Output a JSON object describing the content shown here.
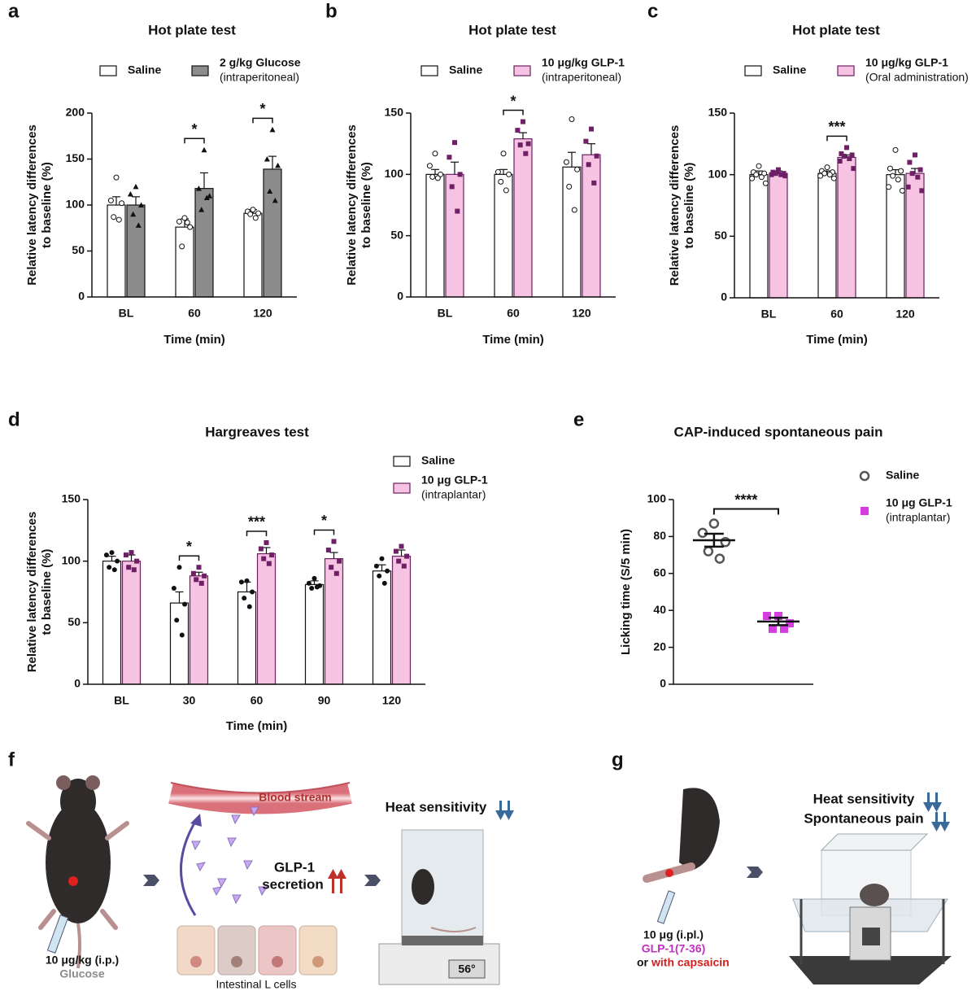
{
  "chart_data": [
    {
      "type": "bar",
      "panel": "a",
      "title": "Hot plate test",
      "xlabel": "Time (min)",
      "ylabel": [
        "Relative latency differences",
        "to baseline (%)"
      ],
      "categories": [
        "BL",
        "60",
        "120"
      ],
      "ylim": [
        0,
        200
      ],
      "yticks": [
        0,
        50,
        100,
        150,
        200
      ],
      "significance": [
        null,
        "*",
        "*"
      ],
      "series": [
        {
          "name": "Saline",
          "color": "#ffffff",
          "edge": "#111111",
          "marker": "open-circle",
          "marker_color": "#111111",
          "values": [
            100,
            76,
            91
          ],
          "errors": [
            9,
            9,
            4
          ],
          "points": [
            [
              130,
              105,
              102,
              87,
              84
            ],
            [
              86,
              82,
              76,
              55,
              81
            ],
            [
              95,
              93,
              91,
              90,
              86
            ]
          ]
        },
        {
          "name": "2 g/kg Glucose",
          "note": "(intraperitoneal)",
          "color": "#8c8c8c",
          "edge": "#111111",
          "marker": "triangle",
          "marker_color": "#111111",
          "values": [
            100,
            118,
            139
          ],
          "errors": [
            9,
            17,
            14
          ],
          "points": [
            [
              120,
              112,
              100,
              90,
              78
            ],
            [
              160,
              118,
              110,
              95,
              108
            ],
            [
              182,
              150,
              143,
              115,
              105
            ]
          ]
        }
      ]
    },
    {
      "type": "bar",
      "panel": "b",
      "title": "Hot plate test",
      "xlabel": "Time (min)",
      "ylabel": [
        "Relative latency differences",
        "to baseline (%)"
      ],
      "categories": [
        "BL",
        "60",
        "120"
      ],
      "ylim": [
        0,
        150
      ],
      "yticks": [
        0,
        50,
        100,
        150
      ],
      "significance": [
        null,
        "*",
        null
      ],
      "series": [
        {
          "name": "Saline",
          "color": "#ffffff",
          "edge": "#111111",
          "marker": "open-circle",
          "marker_color": "#111111",
          "values": [
            100,
            100,
            106
          ],
          "errors": [
            4,
            4,
            12
          ],
          "points": [
            [
              117,
              107,
              100,
              98,
              97
            ],
            [
              117,
              102,
              100,
              94,
              87
            ],
            [
              145,
              110,
              104,
              90,
              71
            ]
          ]
        },
        {
          "name": "10 μg/kg GLP-1",
          "note": "(intraperitoneal)",
          "color": "#f6c3e3",
          "edge": "#6b2060",
          "marker": "square",
          "marker_color": "#6e1f66",
          "values": [
            100,
            129,
            116
          ],
          "errors": [
            10,
            5,
            9
          ],
          "points": [
            [
              126,
              114,
              100,
              90,
              70
            ],
            [
              143,
              136,
              125,
              124,
              117
            ],
            [
              137,
              127,
              115,
              108,
              93
            ]
          ]
        }
      ]
    },
    {
      "type": "bar",
      "panel": "c",
      "title": "Hot plate test",
      "xlabel": "Time (min)",
      "ylabel": [
        "Relative latency differences",
        "to baseline (%)"
      ],
      "categories": [
        "BL",
        "60",
        "120"
      ],
      "ylim": [
        0,
        150
      ],
      "yticks": [
        0,
        50,
        100,
        150
      ],
      "significance": [
        null,
        "***",
        null
      ],
      "series": [
        {
          "name": "Saline",
          "color": "#ffffff",
          "edge": "#111111",
          "marker": "open-circle",
          "marker_color": "#111111",
          "values": [
            100,
            101,
            100
          ],
          "errors": [
            3,
            2,
            4
          ],
          "points": [
            [
              107,
              102,
              101,
              100,
              98,
              97,
              93
            ],
            [
              106,
              103,
              102,
              101,
              100,
              99,
              97
            ],
            [
              120,
              105,
              103,
              99,
              96,
              90,
              87
            ]
          ]
        },
        {
          "name": "10 μg/kg GLP-1",
          "note": "(Oral administration)",
          "color": "#f6c3e3",
          "edge": "#6b2060",
          "marker": "square",
          "marker_color": "#6e1f66",
          "values": [
            101,
            114,
            101
          ],
          "errors": [
            2,
            2,
            4
          ],
          "points": [
            [
              104,
              102,
              101,
              101,
              100,
              100,
              99
            ],
            [
              122,
              117,
              116,
              115,
              113,
              111,
              105
            ],
            [
              116,
              110,
              104,
              101,
              98,
              90,
              87
            ]
          ]
        }
      ]
    },
    {
      "type": "bar",
      "panel": "d",
      "title": "Hargreaves test",
      "xlabel": "Time (min)",
      "ylabel": [
        "Relative latency differences",
        "to baseline (%)"
      ],
      "categories": [
        "BL",
        "30",
        "60",
        "90",
        "120"
      ],
      "ylim": [
        0,
        150
      ],
      "yticks": [
        0,
        50,
        100,
        150
      ],
      "significance": [
        null,
        "*",
        "***",
        "*",
        null
      ],
      "series": [
        {
          "name": "Saline",
          "color": "#ffffff",
          "edge": "#111111",
          "marker": "circle",
          "marker_color": "#111111",
          "values": [
            100,
            66,
            75,
            81,
            92
          ],
          "errors": [
            4,
            9,
            8,
            3,
            5
          ],
          "points": [
            [
              107,
              105,
              100,
              95,
              93
            ],
            [
              95,
              78,
              65,
              52,
              40
            ],
            [
              84,
              83,
              75,
              70,
              63
            ],
            [
              86,
              82,
              80,
              78,
              79
            ],
            [
              102,
              96,
              92,
              88,
              82
            ]
          ]
        },
        {
          "name": "10 μg GLP-1",
          "note": "(intraplantar)",
          "color": "#f6c3e3",
          "edge": "#6b2060",
          "marker": "square",
          "marker_color": "#6e1f66",
          "values": [
            100,
            88,
            106,
            102,
            104
          ],
          "errors": [
            5,
            3,
            5,
            5,
            5
          ],
          "points": [
            [
              107,
              105,
              100,
              95,
              93
            ],
            [
              95,
              90,
              88,
              85,
              82
            ],
            [
              115,
              110,
              105,
              102,
              98
            ],
            [
              116,
              109,
              100,
              95,
              90
            ],
            [
              112,
              108,
              104,
              100,
              96
            ]
          ]
        }
      ]
    },
    {
      "type": "scatter",
      "panel": "e",
      "title": "CAP-induced spontaneous pain",
      "ylabel": [
        "Licking time (S/5 min)"
      ],
      "ylim": [
        0,
        100
      ],
      "yticks": [
        0,
        20,
        40,
        60,
        80,
        100
      ],
      "significance": "****",
      "series": [
        {
          "name": "Saline",
          "marker": "open-circle",
          "color": "#555555",
          "mean": 78,
          "sem": 3.5,
          "values": [
            87,
            82,
            77,
            72,
            68
          ]
        },
        {
          "name": "10 μg GLP-1",
          "note": "(intraplantar)",
          "marker": "square",
          "color": "#d63de0",
          "mean": 34,
          "sem": 2,
          "values": [
            37,
            37,
            33,
            30,
            30
          ]
        }
      ]
    }
  ],
  "diagrams": {
    "f": {
      "panel": "f",
      "dose": "10 μg/kg (i.p.)",
      "drug": "Glucose",
      "vessel": "Blood stream",
      "hormone": "GLP-1",
      "process": "secretion",
      "cells": "Intestinal L cells",
      "effect": "Heat sensitivity",
      "display": "56°"
    },
    "g": {
      "panel": "g",
      "effect1": "Heat sensitivity",
      "effect2": "Spontaneous pain",
      "dose": "10 μg (i.pl.)",
      "drug": "GLP-1(7-36)",
      "or": "or",
      "alt": "with capsaicin"
    }
  }
}
